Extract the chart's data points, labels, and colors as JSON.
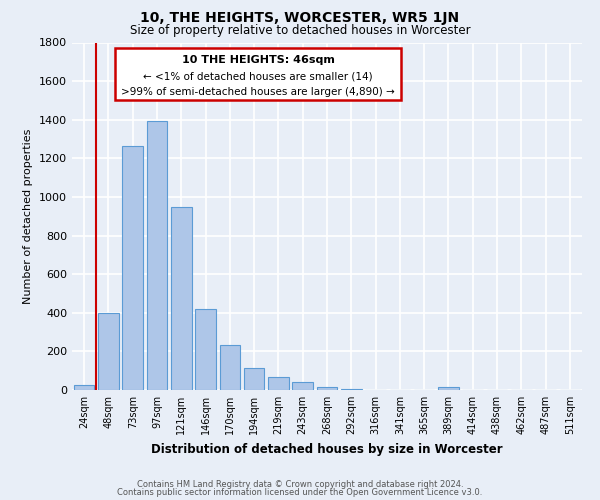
{
  "title": "10, THE HEIGHTS, WORCESTER, WR5 1JN",
  "subtitle": "Size of property relative to detached houses in Worcester",
  "xlabel": "Distribution of detached houses by size in Worcester",
  "ylabel": "Number of detached properties",
  "bar_labels": [
    "24sqm",
    "48sqm",
    "73sqm",
    "97sqm",
    "121sqm",
    "146sqm",
    "170sqm",
    "194sqm",
    "219sqm",
    "243sqm",
    "268sqm",
    "292sqm",
    "316sqm",
    "341sqm",
    "365sqm",
    "389sqm",
    "414sqm",
    "438sqm",
    "462sqm",
    "487sqm",
    "511sqm"
  ],
  "bar_values": [
    25,
    400,
    1265,
    1395,
    950,
    420,
    235,
    115,
    65,
    40,
    15,
    5,
    0,
    0,
    0,
    15,
    0,
    0,
    0,
    0,
    0
  ],
  "bar_color": "#aec6e8",
  "bar_edge_color": "#5b9bd5",
  "background_color": "#e8eef7",
  "grid_color": "#ffffff",
  "ylim": [
    0,
    1800
  ],
  "yticks": [
    0,
    200,
    400,
    600,
    800,
    1000,
    1200,
    1400,
    1600,
    1800
  ],
  "annotation_box_title": "10 THE HEIGHTS: 46sqm",
  "annotation_line1": "← <1% of detached houses are smaller (14)",
  "annotation_line2": ">99% of semi-detached houses are larger (4,890) →",
  "annotation_box_color": "#cc0000",
  "marker_color": "#cc0000",
  "footer_line1": "Contains HM Land Registry data © Crown copyright and database right 2024.",
  "footer_line2": "Contains public sector information licensed under the Open Government Licence v3.0."
}
